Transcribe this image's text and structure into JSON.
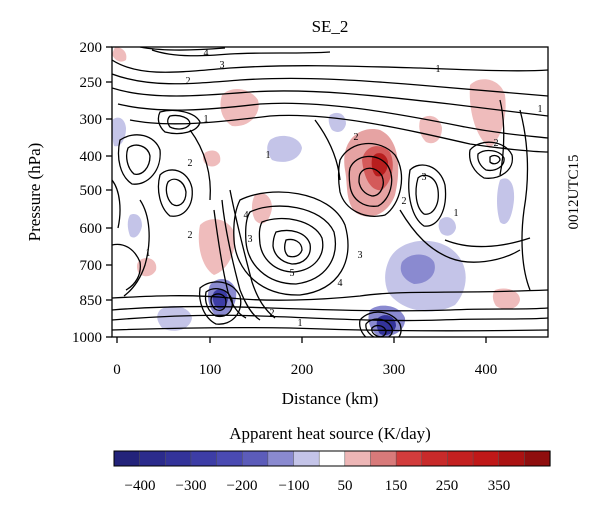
{
  "figure": {
    "title": "SE_2",
    "xlabel": "Distance (km)",
    "ylabel": "Pressure (hPa)",
    "side_label": "0012UTC15",
    "x_ticks": [
      "0",
      "100",
      "200",
      "300",
      "400"
    ],
    "y_ticks": [
      "200",
      "250",
      "300",
      "400",
      "500",
      "600",
      "700",
      "850",
      "1000"
    ],
    "contour_labels": [
      "4",
      "3",
      "2",
      "1",
      "1",
      "1",
      "2",
      "1",
      "2",
      "2",
      "4",
      "3",
      "5",
      "3",
      "4",
      "2",
      "1",
      "2",
      "3",
      "1",
      "2",
      "1"
    ]
  },
  "colorbar": {
    "title": "Apparent heat source (K/day)",
    "tick_labels": [
      "−400",
      "−300",
      "−200",
      "−100",
      "50",
      "150",
      "250",
      "350"
    ],
    "colors": [
      "#23237a",
      "#2b2b8c",
      "#33339a",
      "#3d3da6",
      "#4a4ab2",
      "#5c5cba",
      "#8a8ad0",
      "#c4c4e8",
      "#ffffff",
      "#edb6b6",
      "#d87a7a",
      "#d23c3c",
      "#c82a2a",
      "#c42020",
      "#c01818",
      "#ab1212",
      "#8f0e0e"
    ]
  }
}
